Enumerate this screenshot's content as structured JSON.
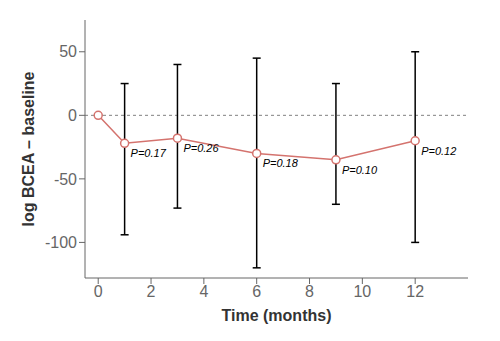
{
  "chart_data": {
    "type": "line",
    "x_label": "Time (months)",
    "y_label": "log BCEA – baseline",
    "x": [
      0,
      1,
      3,
      6,
      9,
      12
    ],
    "values": [
      0,
      -22,
      -18,
      -30,
      -35,
      -20
    ],
    "yerr_upper": [
      0,
      47,
      58,
      75,
      60,
      70
    ],
    "yerr_lower": [
      0,
      72,
      55,
      90,
      35,
      80
    ],
    "color": "#d4736e",
    "marker": "circle",
    "annotations": [
      {
        "x": 1,
        "y": -22,
        "text": "P=0.17"
      },
      {
        "x": 3,
        "y": -18,
        "text": "P=0.26"
      },
      {
        "x": 6,
        "y": -30,
        "text": "P=0.18"
      },
      {
        "x": 9,
        "y": -35,
        "text": "P=0.10"
      },
      {
        "x": 12,
        "y": -20,
        "text": "P=0.12"
      }
    ],
    "ref_line_y": 0,
    "xlim": [
      -0.5,
      14
    ],
    "ylim": [
      -128,
      75
    ],
    "xticks": [
      0,
      2,
      4,
      6,
      8,
      10,
      12
    ],
    "yticks": [
      -100,
      -50,
      0,
      50
    ],
    "grid": false
  }
}
